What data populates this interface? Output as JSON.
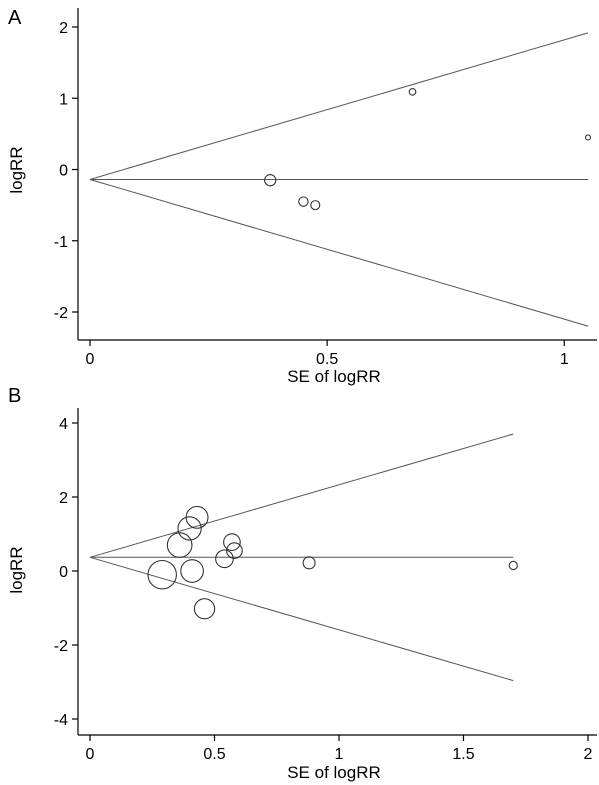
{
  "chart_data": [
    {
      "type": "scatter",
      "panel_label": "A",
      "title": "",
      "xlabel": "SE of logRR",
      "ylabel": "logRR",
      "xlim": [
        0,
        1.05
      ],
      "ylim": [
        -2.2,
        2.15
      ],
      "xticks": [
        0,
        0.5,
        1
      ],
      "xtick_labels": [
        "0",
        "0.5",
        "1"
      ],
      "yticks": [
        2,
        1,
        0,
        -1,
        -2
      ],
      "ytick_labels": [
        "2",
        "1",
        "0",
        "-1",
        "-2"
      ],
      "pooled_estimate": -0.14,
      "funnel_max_se": 1.05,
      "grid": false,
      "points": [
        {
          "se": 0.38,
          "logRR": -0.15,
          "weight": 7.0
        },
        {
          "se": 0.45,
          "logRR": -0.45,
          "weight": 4.8
        },
        {
          "se": 0.475,
          "logRR": -0.5,
          "weight": 4.4
        },
        {
          "se": 0.68,
          "logRR": 1.09,
          "weight": 2.2
        },
        {
          "se": 1.05,
          "logRR": 0.45,
          "weight": 0.9
        }
      ]
    },
    {
      "type": "scatter",
      "panel_label": "B",
      "title": "",
      "xlabel": "SE of logRR",
      "ylabel": "logRR",
      "xlim": [
        0,
        2
      ],
      "ylim": [
        -4.3,
        4.3
      ],
      "xticks": [
        0,
        0.5,
        1,
        1.5,
        2
      ],
      "xtick_labels": [
        "0",
        "0.5",
        "1",
        "1.5",
        "2"
      ],
      "yticks": [
        4,
        2,
        0,
        -2,
        -4
      ],
      "ytick_labels": [
        "4",
        "2",
        "0",
        "-2",
        "-4"
      ],
      "pooled_estimate": 0.37,
      "funnel_max_se": 1.7,
      "grid": false,
      "points": [
        {
          "se": 0.29,
          "logRR": -0.1,
          "weight": 12.0
        },
        {
          "se": 0.36,
          "logRR": 0.7,
          "weight": 9.0
        },
        {
          "se": 0.4,
          "logRR": 1.15,
          "weight": 8.0
        },
        {
          "se": 0.43,
          "logRR": 1.45,
          "weight": 7.0
        },
        {
          "se": 0.41,
          "logRR": 0.0,
          "weight": 7.5
        },
        {
          "se": 0.46,
          "logRR": -1.02,
          "weight": 6.0
        },
        {
          "se": 0.54,
          "logRR": 0.33,
          "weight": 4.5
        },
        {
          "se": 0.57,
          "logRR": 0.78,
          "weight": 4.0
        },
        {
          "se": 0.58,
          "logRR": 0.55,
          "weight": 3.5
        },
        {
          "se": 0.88,
          "logRR": 0.22,
          "weight": 2.0
        },
        {
          "se": 1.7,
          "logRR": 0.15,
          "weight": 0.9
        }
      ]
    }
  ]
}
